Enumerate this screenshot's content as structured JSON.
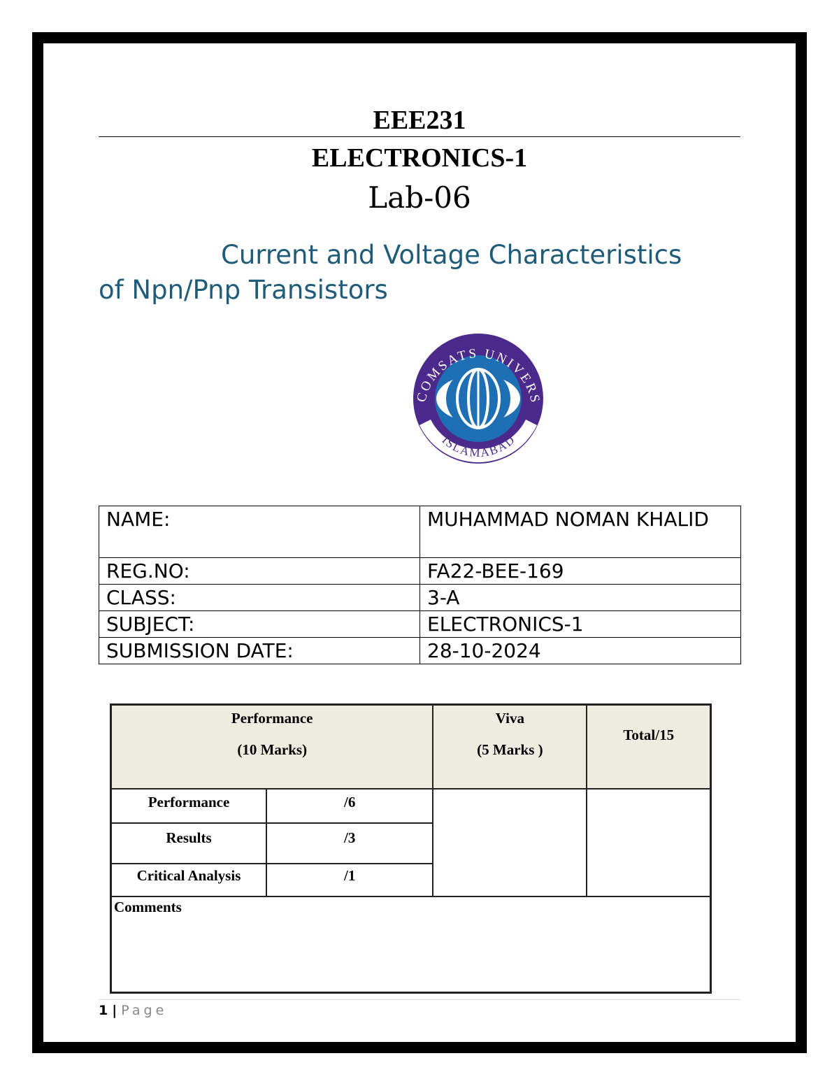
{
  "header": {
    "course_code": "EEE231",
    "course_name": "ELECTRONICS-1",
    "lab": "Lab-06",
    "title_line1": "Current and Voltage Characteristics",
    "title_line2": "of Npn/Pnp Transistors"
  },
  "logo": {
    "top_text": "COMSATS UNIVERSITY",
    "bottom_text": "ISLAMABAD",
    "colors": {
      "ring": "#4b2a8c",
      "globe": "#1f6fb5"
    }
  },
  "info": [
    {
      "label": "NAME:",
      "value": "MUHAMMAD NOMAN KHALID"
    },
    {
      "label": "REG.NO:",
      "value": "FA22-BEE-169"
    },
    {
      "label": "CLASS:",
      "value": "3-A"
    },
    {
      "label": "SUBJECT:",
      "value": "ELECTRONICS-1"
    },
    {
      "label": "SUBMISSION DATE:",
      "value": "28-10-2024"
    }
  ],
  "marks": {
    "perf_head": "Performance",
    "perf_sub": "(10  Marks)",
    "viva_head": "Viva",
    "viva_sub": "(5 Marks )",
    "total": "Total/15",
    "rows": [
      {
        "label": "Performance",
        "max": "/6"
      },
      {
        "label": "Results",
        "max": "/3"
      },
      {
        "label": "Critical Analysis",
        "max": "/1"
      }
    ],
    "comments": "Comments"
  },
  "footer": {
    "page_num": "1",
    "sep": "|",
    "page_label": "Page"
  }
}
